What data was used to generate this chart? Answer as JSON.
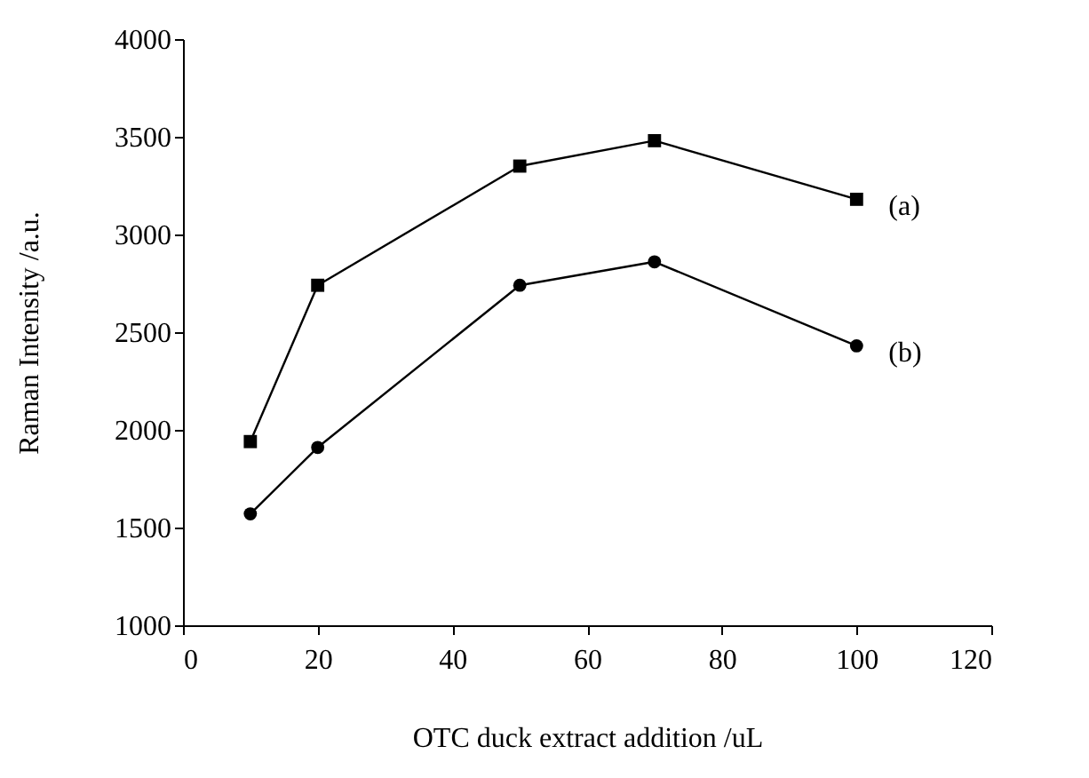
{
  "chart_data": {
    "type": "line",
    "xlabel": "OTC duck extract addition /uL",
    "ylabel": "Raman Intensity /a.u.",
    "x": [
      10,
      20,
      50,
      70,
      100
    ],
    "series": [
      {
        "name": "(a)",
        "color": "#000000",
        "marker": "square",
        "values": [
          1940,
          2740,
          3350,
          3480,
          3180
        ]
      },
      {
        "name": "(b)",
        "color": "#000000",
        "marker": "circle",
        "values": [
          1570,
          1910,
          2740,
          2860,
          2430
        ]
      }
    ],
    "xlim": [
      0,
      120
    ],
    "xticks": [
      0,
      20,
      40,
      60,
      80,
      100,
      120
    ],
    "ylim": [
      1000,
      4000
    ],
    "yticks": [
      1000,
      1500,
      2000,
      2500,
      3000,
      3500,
      4000
    ],
    "grid": false
  }
}
